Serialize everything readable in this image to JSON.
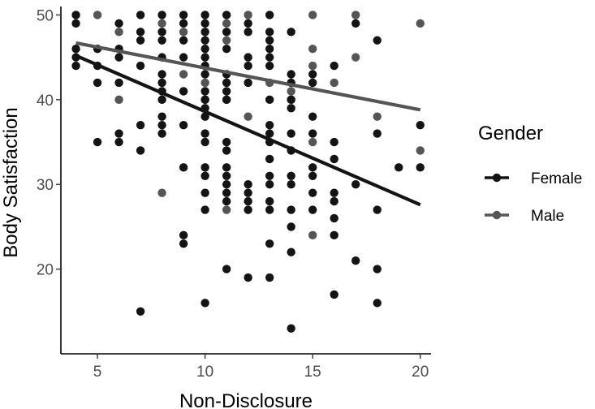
{
  "chart_data": {
    "type": "scatter",
    "title": "",
    "xlabel": "Non-Disclosure",
    "ylabel": "Body Satisfaction",
    "xlim": [
      3.3,
      20.5
    ],
    "ylim": [
      10,
      51
    ],
    "xticks": [
      5,
      10,
      15,
      20
    ],
    "yticks": [
      20,
      30,
      40,
      50
    ],
    "grid": false,
    "legend": {
      "title": "Gender",
      "position": "right"
    },
    "series": [
      {
        "name": "Female",
        "color": "#141414",
        "fit_line": {
          "x": [
            4,
            20
          ],
          "y": [
            45.2,
            27.6
          ]
        },
        "points": [
          [
            4,
            50
          ],
          [
            4,
            49
          ],
          [
            4,
            46
          ],
          [
            4,
            45
          ],
          [
            4,
            44
          ],
          [
            5,
            46
          ],
          [
            5,
            44
          ],
          [
            5,
            42
          ],
          [
            5,
            35
          ],
          [
            6,
            49
          ],
          [
            6,
            46
          ],
          [
            6,
            45
          ],
          [
            6,
            42
          ],
          [
            6,
            36
          ],
          [
            6,
            35
          ],
          [
            7,
            50
          ],
          [
            7,
            48
          ],
          [
            7,
            47
          ],
          [
            7,
            44
          ],
          [
            7,
            37
          ],
          [
            7,
            34
          ],
          [
            7,
            15
          ],
          [
            8,
            50
          ],
          [
            8,
            48
          ],
          [
            8,
            47
          ],
          [
            8,
            45
          ],
          [
            8,
            43
          ],
          [
            8,
            42
          ],
          [
            8,
            41
          ],
          [
            8,
            40
          ],
          [
            8,
            38
          ],
          [
            8,
            37
          ],
          [
            8,
            36
          ],
          [
            9,
            50
          ],
          [
            9,
            49
          ],
          [
            9,
            47
          ],
          [
            9,
            45
          ],
          [
            9,
            41
          ],
          [
            9,
            37
          ],
          [
            9,
            32
          ],
          [
            9,
            24
          ],
          [
            9,
            23
          ],
          [
            10,
            50
          ],
          [
            10,
            49
          ],
          [
            10,
            48
          ],
          [
            10,
            47
          ],
          [
            10,
            46
          ],
          [
            10,
            45
          ],
          [
            10,
            44
          ],
          [
            10,
            43
          ],
          [
            10,
            41
          ],
          [
            10,
            40
          ],
          [
            10,
            39
          ],
          [
            10,
            38
          ],
          [
            10,
            36
          ],
          [
            10,
            35
          ],
          [
            10,
            32
          ],
          [
            10,
            31
          ],
          [
            10,
            29
          ],
          [
            10,
            27
          ],
          [
            10,
            16
          ],
          [
            11,
            50
          ],
          [
            11,
            48
          ],
          [
            11,
            46
          ],
          [
            11,
            43
          ],
          [
            11,
            42
          ],
          [
            11,
            41
          ],
          [
            11,
            40
          ],
          [
            11,
            35
          ],
          [
            11,
            34
          ],
          [
            11,
            32
          ],
          [
            11,
            31
          ],
          [
            11,
            30
          ],
          [
            11,
            29
          ],
          [
            11,
            28
          ],
          [
            11,
            20
          ],
          [
            12,
            49
          ],
          [
            12,
            48
          ],
          [
            12,
            45
          ],
          [
            12,
            44
          ],
          [
            12,
            42
          ],
          [
            12,
            30
          ],
          [
            12,
            29
          ],
          [
            12,
            28
          ],
          [
            12,
            27
          ],
          [
            12,
            19
          ],
          [
            13,
            50
          ],
          [
            13,
            48
          ],
          [
            13,
            47
          ],
          [
            13,
            46
          ],
          [
            13,
            45
          ],
          [
            13,
            44
          ],
          [
            13,
            40
          ],
          [
            13,
            37
          ],
          [
            13,
            36
          ],
          [
            13,
            35
          ],
          [
            13,
            33
          ],
          [
            13,
            31
          ],
          [
            13,
            30
          ],
          [
            13,
            28
          ],
          [
            13,
            27
          ],
          [
            13,
            23
          ],
          [
            13,
            19
          ],
          [
            14,
            48
          ],
          [
            14,
            43
          ],
          [
            14,
            42
          ],
          [
            14,
            40
          ],
          [
            14,
            39
          ],
          [
            14,
            36
          ],
          [
            14,
            34
          ],
          [
            14,
            31
          ],
          [
            14,
            30
          ],
          [
            14,
            27
          ],
          [
            14,
            25
          ],
          [
            14,
            22
          ],
          [
            14,
            13
          ],
          [
            15,
            43
          ],
          [
            15,
            42
          ],
          [
            15,
            38
          ],
          [
            15,
            36
          ],
          [
            15,
            32
          ],
          [
            15,
            31
          ],
          [
            15,
            29
          ],
          [
            15,
            27
          ],
          [
            16,
            44
          ],
          [
            16,
            35
          ],
          [
            16,
            33
          ],
          [
            16,
            29
          ],
          [
            16,
            28
          ],
          [
            16,
            26
          ],
          [
            16,
            24
          ],
          [
            16,
            17
          ],
          [
            17,
            49
          ],
          [
            17,
            30
          ],
          [
            17,
            21
          ],
          [
            18,
            47
          ],
          [
            18,
            36
          ],
          [
            18,
            27
          ],
          [
            18,
            20
          ],
          [
            18,
            16
          ],
          [
            19,
            32
          ],
          [
            20,
            37
          ],
          [
            20,
            32
          ]
        ]
      },
      {
        "name": "Male",
        "color": "#555555",
        "fit_line": {
          "x": [
            4,
            20
          ],
          "y": [
            46.7,
            38.8
          ]
        },
        "points": [
          [
            5,
            50
          ],
          [
            6,
            48
          ],
          [
            6,
            40
          ],
          [
            8,
            49
          ],
          [
            8,
            29
          ],
          [
            9,
            48
          ],
          [
            9,
            43
          ],
          [
            10,
            42
          ],
          [
            10,
            40
          ],
          [
            11,
            49
          ],
          [
            11,
            47
          ],
          [
            11,
            40
          ],
          [
            11,
            27
          ],
          [
            12,
            50
          ],
          [
            12,
            38
          ],
          [
            13,
            42
          ],
          [
            14,
            41
          ],
          [
            14,
            40
          ],
          [
            15,
            50
          ],
          [
            15,
            46
          ],
          [
            15,
            44
          ],
          [
            15,
            35
          ],
          [
            15,
            24
          ],
          [
            16,
            42
          ],
          [
            17,
            50
          ],
          [
            17,
            45
          ],
          [
            18,
            38
          ],
          [
            20,
            49
          ],
          [
            20,
            34
          ]
        ]
      }
    ]
  }
}
